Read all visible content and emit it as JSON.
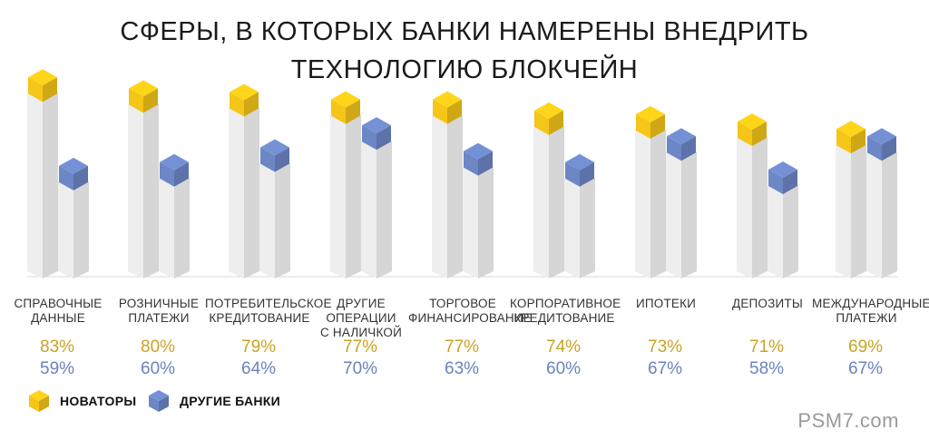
{
  "title": {
    "line1": "СФЕРЫ, В КОТОРЫХ БАНКИ НАМЕРЕНЫ ВНЕДРИТЬ",
    "line2": "ТЕХНОЛОГИЮ БЛОКЧЕЙН"
  },
  "colors": {
    "series_a": "#f5c518",
    "series_b": "#6c86c6",
    "column": "#e5e5e5"
  },
  "chart_data": {
    "type": "bar",
    "categories": [
      "СПРАВОЧНЫЕ\nДАННЫЕ",
      "РОЗНИЧНЫЕ\nПЛАТЕЖИ",
      "ПОТРЕБИТЕЛЬСКОЕ\nКРЕДИТОВАНИЕ",
      "ДРУГИЕ ОПЕРАЦИИ\nС НАЛИЧКОЙ",
      "ТОРГОВОЕ\nФИНАНСИРОВАНИЕ",
      "КОРПОРАТИВНОЕ\nКРЕДИТОВАНИЕ",
      "ИПОТЕКИ",
      "ДЕПОЗИТЫ",
      "МЕЖДУНАРОДНЫЕ\nПЛАТЕЖИ"
    ],
    "series": [
      {
        "name": "НОВАТОРЫ",
        "values": [
          83,
          80,
          79,
          77,
          77,
          74,
          73,
          71,
          69
        ],
        "labels": [
          "83%",
          "80%",
          "79%",
          "77%",
          "77%",
          "74%",
          "73%",
          "71%",
          "69%"
        ]
      },
      {
        "name": "ДРУГИЕ БАНКИ",
        "values": [
          59,
          60,
          64,
          70,
          63,
          60,
          67,
          58,
          67
        ],
        "labels": [
          "59%",
          "60%",
          "64%",
          "70%",
          "63%",
          "60%",
          "67%",
          "58%",
          "67%"
        ]
      }
    ],
    "legend": "bottom-left"
  },
  "watermark": "PSM7.com"
}
